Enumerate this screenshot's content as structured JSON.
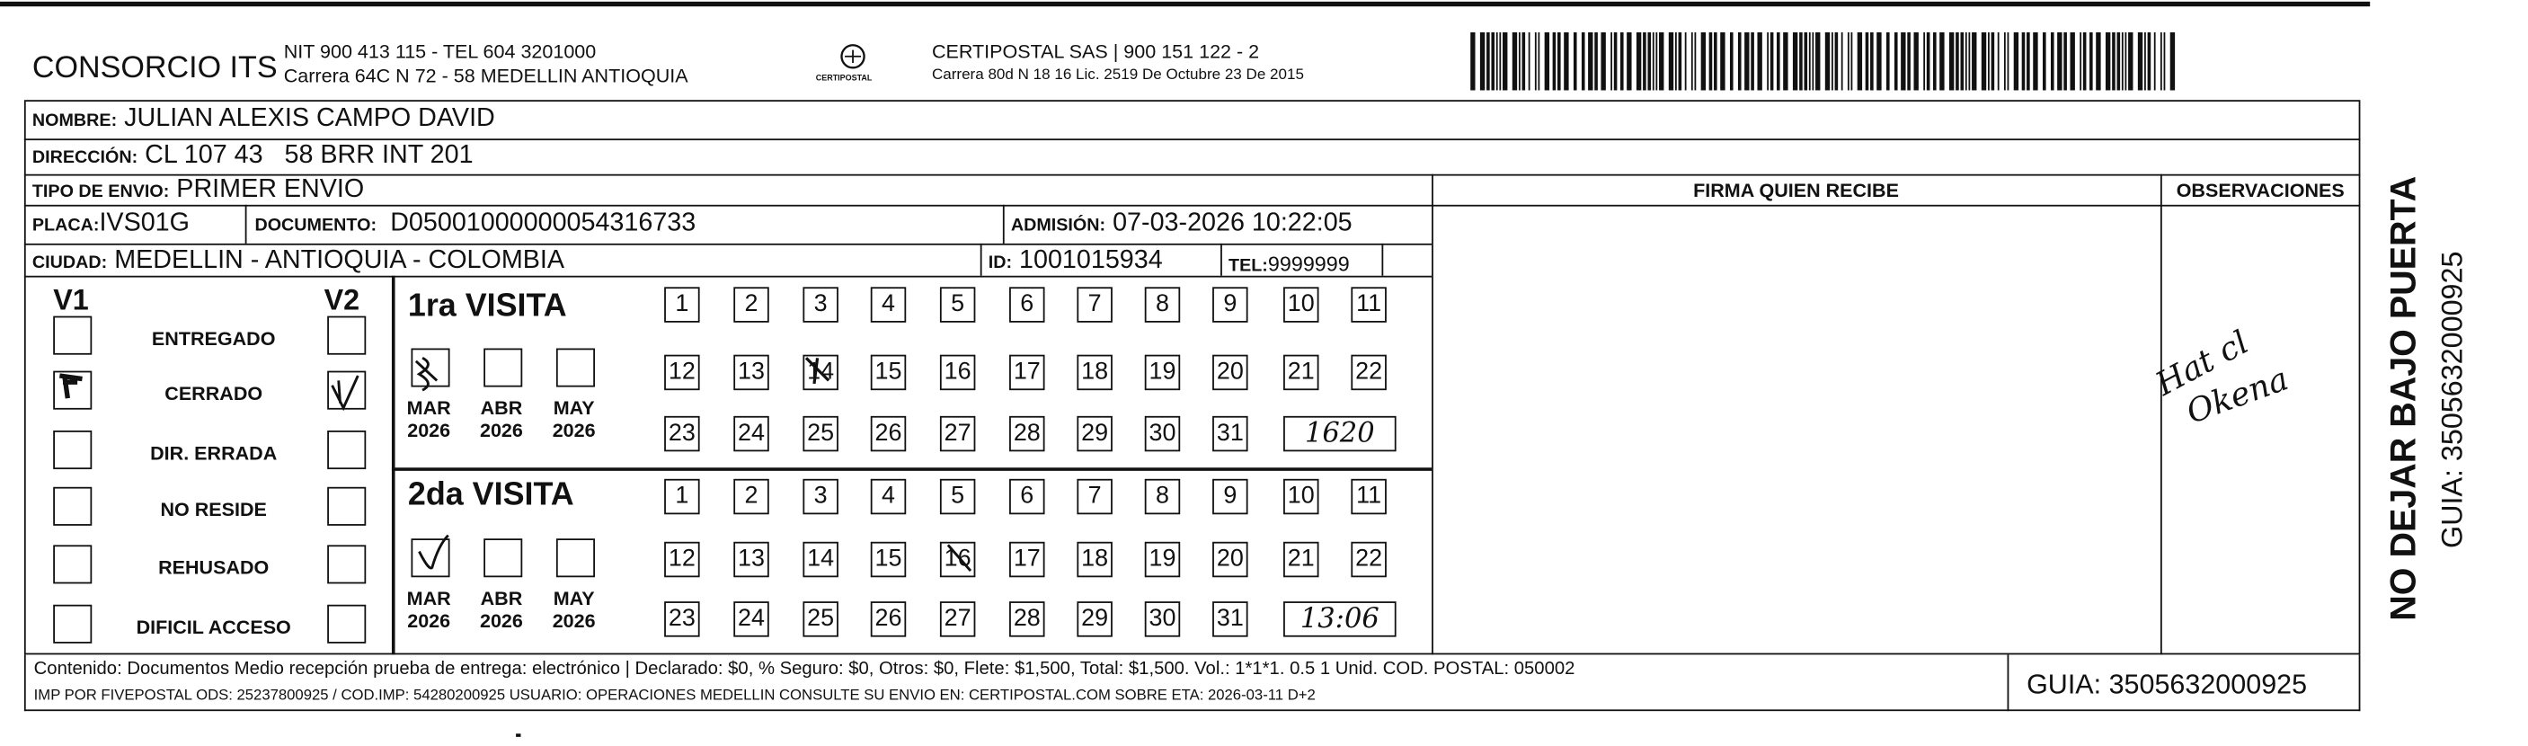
{
  "header": {
    "company": "CONSORCIO ITS",
    "nit": "NIT 900 413 115 - TEL 604 3201000",
    "address": "Carrera 64C N 72 - 58 MEDELLIN ANTIOQUIA",
    "logo_text": "CERTIPOSTAL",
    "carrier": "CERTIPOSTAL SAS | 900 151 122 - 2",
    "carrier_address": "Carrera 80d N 18 16  Lic. 2519 De Octubre 23 De 2015"
  },
  "fields": {
    "nombre": {
      "label": "Nombre:",
      "value": "JULIAN ALEXIS CAMPO DAVID"
    },
    "direccion": {
      "label": "Dirección:",
      "value": "CL 107 43   58 BRR INT 201"
    },
    "tipo_envio": {
      "label": "Tipo de envio:",
      "value": "PRIMER ENVIO"
    },
    "placa": {
      "label": "Placa:",
      "value": "IVS01G"
    },
    "documento": {
      "label": "Documento:",
      "value": "D05001000000054316733"
    },
    "admision": {
      "label": "Admisión:",
      "value": "07-03-2026 10:22:05"
    },
    "ciudad": {
      "label": "Ciudad:",
      "value": "MEDELLIN - ANTIOQUIA - COLOMBIA"
    },
    "id": {
      "label": "ID:",
      "value": "1001015934"
    },
    "tel": {
      "label": "TEL:",
      "value": "9999999"
    }
  },
  "columns": {
    "signature": "FIRMA QUIEN RECIBE",
    "observations": "OBSERVACIONES"
  },
  "observation_note": [
    "Hat cl",
    "Okena"
  ],
  "status": {
    "v1": "V1",
    "v2": "V2",
    "reasons": [
      "ENTREGADO",
      "CERRADO",
      "DIR. ERRADA",
      "NO RESIDE",
      "REHUSADO",
      "DIFICIL ACCESO"
    ]
  },
  "visits": [
    {
      "title": "1ra VISITA",
      "months": [
        {
          "month": "MAR",
          "year": "2026"
        },
        {
          "month": "ABR",
          "year": "2026"
        },
        {
          "month": "MAY",
          "year": "2026"
        }
      ],
      "days": [
        1,
        2,
        3,
        4,
        5,
        6,
        7,
        8,
        9,
        10,
        11,
        12,
        13,
        14,
        15,
        16,
        17,
        18,
        19,
        20,
        21,
        22,
        23,
        24,
        25,
        26,
        27,
        28,
        29,
        30,
        31
      ],
      "time": "1620"
    },
    {
      "title": "2da VISITA",
      "months": [
        {
          "month": "MAR",
          "year": "2026"
        },
        {
          "month": "ABR",
          "year": "2026"
        },
        {
          "month": "MAY",
          "year": "2026"
        }
      ],
      "days": [
        1,
        2,
        3,
        4,
        5,
        6,
        7,
        8,
        9,
        10,
        11,
        12,
        13,
        14,
        15,
        16,
        17,
        18,
        19,
        20,
        21,
        22,
        23,
        24,
        25,
        26,
        27,
        28,
        29,
        30,
        31
      ],
      "time": "13:06"
    }
  ],
  "side": {
    "warning": "NO DEJAR BAJO PUERTA",
    "guide": "GUIA: 3505632000925"
  },
  "footer": {
    "line1": "Contenido: Documentos Medio recepción prueba de entrega: electrónico | Declarado: $0, % Seguro: $0, Otros: $0, Flete: $1,500, Total: $1,500. Vol.: 1*1*1. 0.5  1 Unid. COD. POSTAL: 050002",
    "line2": "IMP POR FIVEPOSTAL ODS: 25237800925 / COD.IMP: 54280200925 USUARIO: OPERACIONES MEDELLIN CONSULTE SU ENVIO EN: CERTIPOSTAL.COM SOBRE ETA: 2026-03-11 D+2",
    "guide": "GUIA: 3505632000925"
  }
}
